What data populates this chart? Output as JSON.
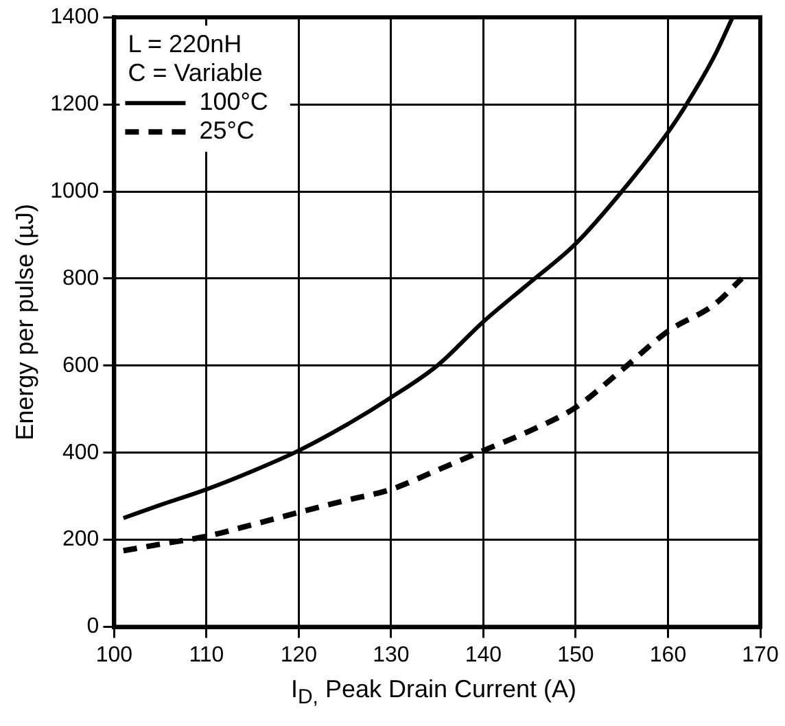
{
  "chart_data": {
    "type": "line",
    "xlabel": "I$_{D,}$ Peak Drain Current  (A)",
    "ylabel": "Energy per pulse (µJ)",
    "annotations": [
      "L = 220nH",
      "C = Variable"
    ],
    "xlim": [
      100,
      170
    ],
    "xticks": [
      100,
      110,
      120,
      130,
      140,
      150,
      160,
      170
    ],
    "ylim": [
      0,
      1400
    ],
    "yticks": [
      0,
      200,
      400,
      600,
      800,
      1000,
      1200,
      1400
    ],
    "grid": true,
    "legend": "top left",
    "marker": "none",
    "series": [
      {
        "name": "100°C",
        "color": "#000000",
        "line_style": "solid",
        "x": [
          101,
          105,
          110,
          115,
          120,
          125,
          130,
          135,
          140,
          145,
          150,
          155,
          160,
          162,
          165,
          167
        ],
        "values": [
          250,
          280,
          316,
          358,
          405,
          462,
          527,
          600,
          701,
          790,
          880,
          1000,
          1136,
          1200,
          1310,
          1400
        ]
      },
      {
        "name": "25°C",
        "color": "#000000",
        "line_style": "dashed",
        "x": [
          101,
          105,
          110,
          115,
          120,
          125,
          130,
          135,
          140,
          145,
          150,
          155,
          160,
          165,
          168
        ],
        "values": [
          175,
          190,
          208,
          235,
          263,
          290,
          316,
          360,
          405,
          450,
          504,
          590,
          679,
          740,
          800
        ]
      }
    ]
  }
}
